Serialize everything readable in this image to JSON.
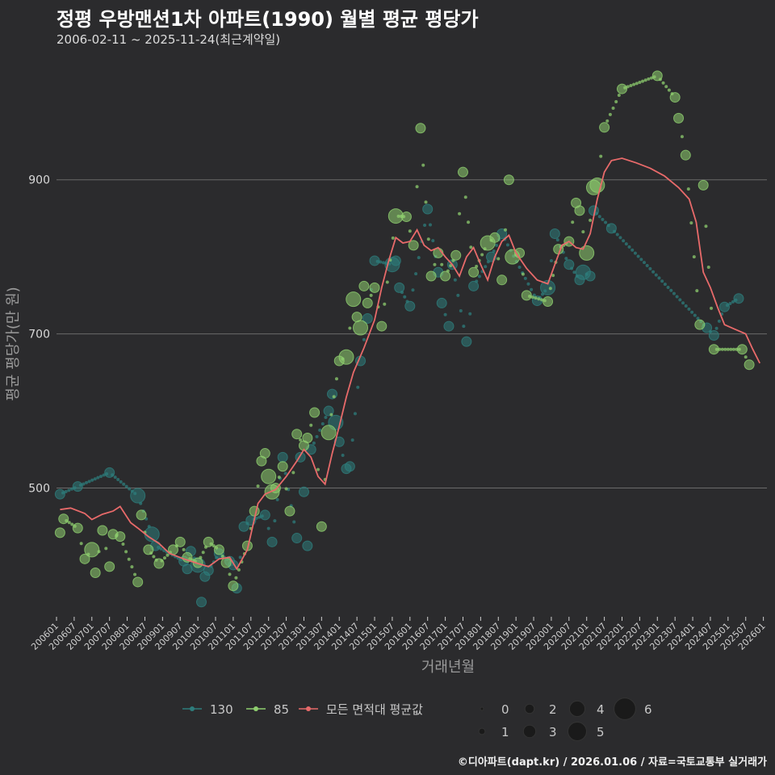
{
  "chart_data": {
    "type": "scatter",
    "title": "정평 우방맨션1차 아파트(1990) 월별 평균 평당가",
    "subtitle": "2006-02-11 ~ 2025-11-24(최근계약일)",
    "xlabel": "거래년월",
    "ylabel": "평균 평당가(만 원)",
    "ylim": [
      335,
      1060
    ],
    "yticks": [
      500,
      700,
      900
    ],
    "xlim": [
      2006.0,
      2026.1
    ],
    "xticks": [
      "200601",
      "200607",
      "200701",
      "200707",
      "200801",
      "200807",
      "200901",
      "200907",
      "201001",
      "201007",
      "201101",
      "201107",
      "201201",
      "201207",
      "201301",
      "201307",
      "201401",
      "201407",
      "201501",
      "201507",
      "201601",
      "201607",
      "201701",
      "201707",
      "201801",
      "201807",
      "201901",
      "201907",
      "202001",
      "202007",
      "202101",
      "202107",
      "202201",
      "202207",
      "202301",
      "202307",
      "202401",
      "202407",
      "202501",
      "202507",
      "202601"
    ],
    "legend": {
      "series_labels": [
        "130",
        "85",
        "모든 면적대 평균값"
      ],
      "size_title": "",
      "size_values": [
        "0",
        "1",
        "2",
        "3",
        "4",
        "5",
        "6"
      ]
    },
    "colors": {
      "130": "#2e7d7c",
      "85": "#8fcf6f",
      "avg": "#e86a6a",
      "grid": "#6a6a6a"
    },
    "series": [
      {
        "name": "130",
        "points": [
          [
            2006.1,
            492,
            1
          ],
          [
            2006.6,
            502,
            1
          ],
          [
            2007.5,
            520,
            1
          ],
          [
            2008.3,
            490,
            2
          ],
          [
            2008.7,
            440,
            2
          ],
          [
            2008.8,
            425,
            1
          ],
          [
            2009.6,
            405,
            1
          ],
          [
            2009.7,
            395,
            1
          ],
          [
            2009.8,
            418,
            1
          ],
          [
            2010.0,
            400,
            2
          ],
          [
            2010.1,
            352,
            1
          ],
          [
            2010.2,
            385,
            1
          ],
          [
            2010.3,
            393,
            1
          ],
          [
            2010.6,
            415,
            1
          ],
          [
            2010.9,
            405,
            1
          ],
          [
            2011.0,
            400,
            1
          ],
          [
            2011.1,
            370,
            1
          ],
          [
            2011.3,
            450,
            1
          ],
          [
            2011.5,
            458,
            1
          ],
          [
            2011.9,
            465,
            1
          ],
          [
            2012.1,
            430,
            1
          ],
          [
            2012.4,
            540,
            1
          ],
          [
            2012.8,
            435,
            1
          ],
          [
            2012.9,
            540,
            1
          ],
          [
            2013.0,
            495,
            1
          ],
          [
            2013.1,
            425,
            1
          ],
          [
            2013.2,
            550,
            1
          ],
          [
            2013.7,
            600,
            1
          ],
          [
            2013.8,
            622,
            1
          ],
          [
            2013.9,
            585,
            2
          ],
          [
            2014.0,
            560,
            1
          ],
          [
            2014.2,
            525,
            1
          ],
          [
            2014.3,
            528,
            1
          ],
          [
            2014.6,
            665,
            1
          ],
          [
            2014.8,
            720,
            1
          ],
          [
            2015.0,
            795,
            1
          ],
          [
            2015.5,
            790,
            2
          ],
          [
            2015.6,
            795,
            1
          ],
          [
            2015.7,
            760,
            1
          ],
          [
            2016.0,
            736,
            1
          ],
          [
            2016.5,
            862,
            1
          ],
          [
            2016.8,
            780,
            1
          ],
          [
            2016.9,
            740,
            1
          ],
          [
            2017.1,
            710,
            1
          ],
          [
            2017.2,
            790,
            1
          ],
          [
            2017.6,
            690,
            1
          ],
          [
            2017.8,
            762,
            1
          ],
          [
            2018.3,
            800,
            1
          ],
          [
            2018.6,
            830,
            1
          ],
          [
            2019.6,
            743,
            1
          ],
          [
            2019.9,
            760,
            2
          ],
          [
            2020.1,
            830,
            1
          ],
          [
            2020.5,
            790,
            1
          ],
          [
            2020.8,
            770,
            1
          ],
          [
            2020.9,
            780,
            2
          ],
          [
            2021.1,
            775,
            1
          ],
          [
            2021.2,
            860,
            1
          ],
          [
            2021.7,
            837,
            1
          ],
          [
            2024.4,
            708,
            1
          ],
          [
            2024.6,
            698,
            1
          ],
          [
            2024.9,
            735,
            1
          ],
          [
            2025.3,
            746,
            1
          ]
        ]
      },
      {
        "name": "85",
        "points": [
          [
            2006.1,
            442,
            1
          ],
          [
            2006.2,
            460,
            1
          ],
          [
            2006.6,
            448,
            1
          ],
          [
            2006.8,
            408,
            1
          ],
          [
            2007.0,
            420,
            2
          ],
          [
            2007.1,
            390,
            1
          ],
          [
            2007.3,
            445,
            1
          ],
          [
            2007.5,
            398,
            1
          ],
          [
            2007.6,
            440,
            1
          ],
          [
            2007.8,
            437,
            1
          ],
          [
            2008.3,
            378,
            1
          ],
          [
            2008.4,
            465,
            1
          ],
          [
            2008.6,
            420,
            1
          ],
          [
            2008.9,
            402,
            1
          ],
          [
            2009.3,
            420,
            1
          ],
          [
            2009.5,
            430,
            1
          ],
          [
            2009.7,
            410,
            1
          ],
          [
            2010.0,
            403,
            1
          ],
          [
            2010.3,
            430,
            1
          ],
          [
            2010.6,
            420,
            1
          ],
          [
            2010.8,
            403,
            1
          ],
          [
            2011.0,
            373,
            1
          ],
          [
            2011.4,
            425,
            1
          ],
          [
            2011.6,
            470,
            1
          ],
          [
            2011.8,
            535,
            1
          ],
          [
            2011.9,
            545,
            1
          ],
          [
            2012.0,
            515,
            2
          ],
          [
            2012.1,
            495,
            2
          ],
          [
            2012.2,
            500,
            1
          ],
          [
            2012.4,
            528,
            1
          ],
          [
            2012.6,
            470,
            1
          ],
          [
            2012.8,
            570,
            1
          ],
          [
            2013.0,
            555,
            1
          ],
          [
            2013.1,
            565,
            1
          ],
          [
            2013.3,
            598,
            1
          ],
          [
            2013.5,
            450,
            1
          ],
          [
            2013.7,
            572,
            2
          ],
          [
            2014.0,
            665,
            1
          ],
          [
            2014.2,
            670,
            2
          ],
          [
            2014.4,
            745,
            2
          ],
          [
            2014.5,
            722,
            1
          ],
          [
            2014.6,
            708,
            2
          ],
          [
            2014.7,
            762,
            1
          ],
          [
            2014.8,
            740,
            1
          ],
          [
            2015.0,
            760,
            1
          ],
          [
            2015.2,
            710,
            1
          ],
          [
            2015.6,
            853,
            2
          ],
          [
            2015.9,
            852,
            1
          ],
          [
            2016.1,
            815,
            1
          ],
          [
            2016.3,
            967,
            1
          ],
          [
            2016.6,
            775,
            1
          ],
          [
            2016.8,
            805,
            1
          ],
          [
            2017.0,
            775,
            1
          ],
          [
            2017.3,
            802,
            1
          ],
          [
            2017.5,
            910,
            1
          ],
          [
            2017.8,
            780,
            1
          ],
          [
            2018.2,
            818,
            2
          ],
          [
            2018.4,
            825,
            1
          ],
          [
            2018.6,
            770,
            1
          ],
          [
            2018.8,
            900,
            1
          ],
          [
            2018.9,
            800,
            2
          ],
          [
            2019.1,
            805,
            1
          ],
          [
            2019.3,
            750,
            1
          ],
          [
            2019.9,
            742,
            1
          ],
          [
            2020.2,
            810,
            1
          ],
          [
            2020.5,
            820,
            1
          ],
          [
            2020.7,
            870,
            1
          ],
          [
            2020.8,
            860,
            1
          ],
          [
            2021.0,
            805,
            2
          ],
          [
            2021.2,
            890,
            2
          ],
          [
            2021.3,
            893,
            2
          ],
          [
            2021.5,
            968,
            1
          ],
          [
            2022.0,
            1018,
            1
          ],
          [
            2023.0,
            1035,
            1
          ],
          [
            2023.5,
            1007,
            1
          ],
          [
            2023.6,
            980,
            1
          ],
          [
            2023.8,
            932,
            1
          ],
          [
            2024.2,
            712,
            1
          ],
          [
            2024.3,
            893,
            1
          ],
          [
            2024.6,
            680,
            1
          ],
          [
            2025.4,
            680,
            1
          ],
          [
            2025.6,
            660,
            1
          ]
        ]
      },
      {
        "name": "모든 면적대 평균값",
        "points": [
          [
            2006.1,
            472
          ],
          [
            2006.4,
            474
          ],
          [
            2006.8,
            467
          ],
          [
            2007.0,
            459
          ],
          [
            2007.3,
            466
          ],
          [
            2007.6,
            470
          ],
          [
            2007.8,
            476
          ],
          [
            2008.1,
            455
          ],
          [
            2008.3,
            448
          ],
          [
            2008.6,
            437
          ],
          [
            2008.9,
            428
          ],
          [
            2009.2,
            415
          ],
          [
            2009.6,
            408
          ],
          [
            2010.0,
            402
          ],
          [
            2010.3,
            398
          ],
          [
            2010.6,
            408
          ],
          [
            2010.9,
            410
          ],
          [
            2011.1,
            395
          ],
          [
            2011.4,
            420
          ],
          [
            2011.7,
            480
          ],
          [
            2011.9,
            492
          ],
          [
            2012.2,
            498
          ],
          [
            2012.5,
            515
          ],
          [
            2012.8,
            535
          ],
          [
            2013.0,
            550
          ],
          [
            2013.2,
            540
          ],
          [
            2013.4,
            515
          ],
          [
            2013.6,
            505
          ],
          [
            2013.8,
            545
          ],
          [
            2014.0,
            580
          ],
          [
            2014.2,
            618
          ],
          [
            2014.4,
            650
          ],
          [
            2014.7,
            682
          ],
          [
            2015.0,
            718
          ],
          [
            2015.2,
            760
          ],
          [
            2015.4,
            795
          ],
          [
            2015.6,
            825
          ],
          [
            2015.8,
            818
          ],
          [
            2016.0,
            820
          ],
          [
            2016.2,
            835
          ],
          [
            2016.4,
            815
          ],
          [
            2016.6,
            808
          ],
          [
            2016.8,
            812
          ],
          [
            2017.0,
            800
          ],
          [
            2017.2,
            790
          ],
          [
            2017.4,
            775
          ],
          [
            2017.6,
            800
          ],
          [
            2017.8,
            812
          ],
          [
            2018.0,
            790
          ],
          [
            2018.2,
            770
          ],
          [
            2018.4,
            800
          ],
          [
            2018.6,
            820
          ],
          [
            2018.8,
            828
          ],
          [
            2019.0,
            805
          ],
          [
            2019.3,
            785
          ],
          [
            2019.6,
            770
          ],
          [
            2019.9,
            765
          ],
          [
            2020.1,
            790
          ],
          [
            2020.3,
            815
          ],
          [
            2020.5,
            820
          ],
          [
            2020.7,
            812
          ],
          [
            2020.9,
            810
          ],
          [
            2021.1,
            830
          ],
          [
            2021.3,
            875
          ],
          [
            2021.5,
            910
          ],
          [
            2021.7,
            925
          ],
          [
            2022.0,
            928
          ],
          [
            2022.4,
            922
          ],
          [
            2022.8,
            915
          ],
          [
            2023.2,
            905
          ],
          [
            2023.6,
            890
          ],
          [
            2023.9,
            875
          ],
          [
            2024.1,
            845
          ],
          [
            2024.3,
            780
          ],
          [
            2024.5,
            760
          ],
          [
            2024.7,
            735
          ],
          [
            2024.9,
            712
          ],
          [
            2025.2,
            706
          ],
          [
            2025.5,
            700
          ],
          [
            2025.7,
            680
          ],
          [
            2025.9,
            662
          ]
        ]
      }
    ]
  },
  "footer": "©디아파트(dapt.kr) / 2026.01.06 / 자료=국토교통부 실거래가"
}
